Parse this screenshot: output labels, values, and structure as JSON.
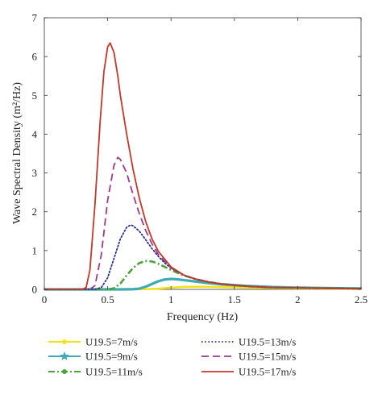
{
  "chart_data": {
    "type": "line",
    "xlabel": "Frequency (Hz)",
    "ylabel": "Wave Spectral Density (m²/Hz)",
    "xlim": [
      0,
      2.5
    ],
    "ylim": [
      0,
      7
    ],
    "xticks": [
      0,
      0.5,
      1,
      1.5,
      2,
      2.5
    ],
    "xtick_labels": [
      "0",
      "0.5",
      "1",
      "1.5",
      "2",
      "2.5"
    ],
    "yticks": [
      0,
      1,
      2,
      3,
      4,
      5,
      6,
      7
    ],
    "ytick_labels": [
      "0",
      "1",
      "2",
      "3",
      "4",
      "5",
      "6",
      "7"
    ],
    "grid": false,
    "legend_position": "bottom",
    "series": [
      {
        "name": "U19.5=7m/s",
        "color": "#f5e11a",
        "line_style": "solid",
        "marker": "dot",
        "x": [
          0,
          0.5,
          0.7,
          0.8,
          0.9,
          1.0,
          1.1,
          1.2,
          1.3,
          1.4,
          1.6,
          1.8,
          2.0,
          2.2,
          2.5
        ],
        "y": [
          0,
          0,
          0.001,
          0.005,
          0.02,
          0.045,
          0.065,
          0.07,
          0.065,
          0.06,
          0.045,
          0.035,
          0.025,
          0.02,
          0.015
        ]
      },
      {
        "name": "U19.5=9m/s",
        "color": "#3fa9b5",
        "line_style": "solid",
        "marker": "star",
        "x": [
          0,
          0.6,
          0.7,
          0.75,
          0.8,
          0.85,
          0.9,
          0.95,
          1.0,
          1.05,
          1.1,
          1.2,
          1.3,
          1.4,
          1.6,
          1.8,
          2.0,
          2.2,
          2.5
        ],
        "y": [
          0,
          0,
          0.005,
          0.02,
          0.07,
          0.14,
          0.21,
          0.255,
          0.27,
          0.26,
          0.24,
          0.2,
          0.16,
          0.13,
          0.09,
          0.06,
          0.045,
          0.035,
          0.025
        ]
      },
      {
        "name": "U19.5=11m/s",
        "color": "#4aa33a",
        "line_style": "dashdot",
        "marker": "dot",
        "x": [
          0,
          0.5,
          0.55,
          0.6,
          0.65,
          0.7,
          0.75,
          0.8,
          0.85,
          0.9,
          0.95,
          1.0,
          1.1,
          1.2,
          1.3,
          1.4,
          1.6,
          1.8,
          2.0,
          2.2,
          2.5
        ],
        "y": [
          0,
          0,
          0.03,
          0.15,
          0.36,
          0.55,
          0.68,
          0.73,
          0.72,
          0.66,
          0.58,
          0.5,
          0.36,
          0.26,
          0.19,
          0.14,
          0.08,
          0.05,
          0.04,
          0.03,
          0.02
        ]
      },
      {
        "name": "U19.5=13m/s",
        "color": "#2b2f8f",
        "line_style": "dotted",
        "marker": "none",
        "x": [
          0,
          0.4,
          0.45,
          0.5,
          0.55,
          0.6,
          0.65,
          0.68,
          0.7,
          0.75,
          0.8,
          0.85,
          0.9,
          0.95,
          1.0,
          1.1,
          1.2,
          1.3,
          1.4,
          1.6,
          1.8,
          2.0,
          2.2,
          2.5
        ],
        "y": [
          0,
          0,
          0.05,
          0.3,
          0.8,
          1.3,
          1.6,
          1.66,
          1.64,
          1.5,
          1.28,
          1.05,
          0.85,
          0.68,
          0.55,
          0.37,
          0.26,
          0.19,
          0.14,
          0.08,
          0.05,
          0.04,
          0.03,
          0.02
        ]
      },
      {
        "name": "U19.5=15m/s",
        "color": "#9b3a8f",
        "line_style": "dashed",
        "marker": "none",
        "x": [
          0,
          0.36,
          0.4,
          0.45,
          0.5,
          0.55,
          0.58,
          0.6,
          0.65,
          0.7,
          0.75,
          0.8,
          0.85,
          0.9,
          1.0,
          1.1,
          1.2,
          1.3,
          1.4,
          1.6,
          1.8,
          2.0,
          2.2,
          2.5
        ],
        "y": [
          0,
          0,
          0.1,
          0.9,
          2.3,
          3.2,
          3.4,
          3.35,
          3.0,
          2.45,
          1.95,
          1.52,
          1.17,
          0.9,
          0.55,
          0.37,
          0.26,
          0.19,
          0.14,
          0.08,
          0.05,
          0.04,
          0.03,
          0.02
        ]
      },
      {
        "name": "U19.5=17m/s",
        "color": "#c0392b",
        "line_style": "solid",
        "marker": "none",
        "x": [
          0,
          0.3,
          0.33,
          0.36,
          0.4,
          0.44,
          0.47,
          0.5,
          0.52,
          0.55,
          0.58,
          0.6,
          0.65,
          0.7,
          0.75,
          0.8,
          0.85,
          0.9,
          1.0,
          1.1,
          1.2,
          1.3,
          1.4,
          1.6,
          1.8,
          2.0,
          2.2,
          2.5
        ],
        "y": [
          0,
          0,
          0.05,
          0.5,
          2.2,
          4.3,
          5.6,
          6.25,
          6.35,
          6.1,
          5.5,
          5.0,
          4.0,
          3.1,
          2.35,
          1.75,
          1.3,
          0.98,
          0.58,
          0.37,
          0.26,
          0.19,
          0.14,
          0.08,
          0.05,
          0.04,
          0.03,
          0.02
        ]
      }
    ]
  }
}
